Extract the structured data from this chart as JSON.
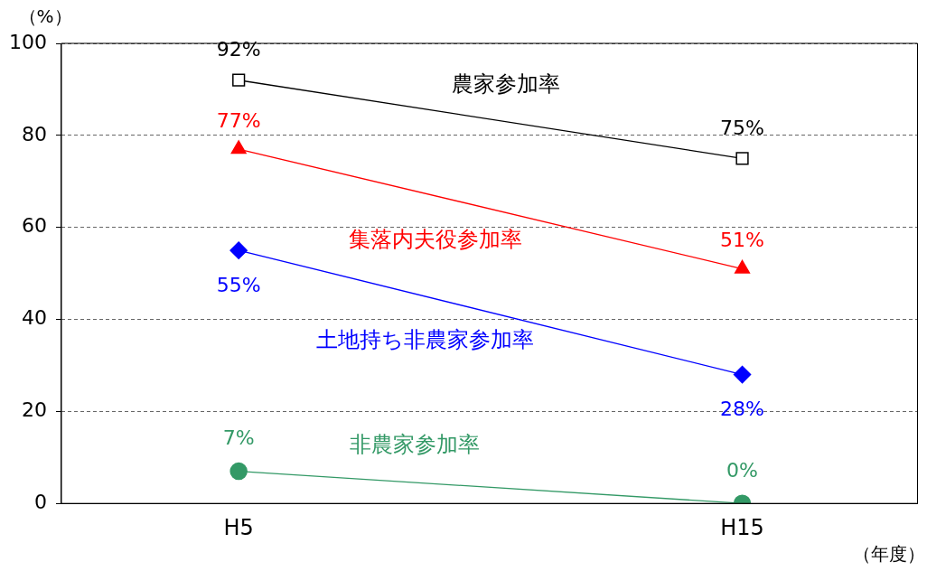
{
  "chart_data": {
    "type": "line",
    "ylabel": "（%）",
    "xlabel": "（年度）",
    "categories": [
      "H5",
      "H15"
    ],
    "ylim": [
      0,
      100
    ],
    "yticks": [
      0,
      20,
      40,
      60,
      80,
      100
    ],
    "grid": "y",
    "legend": false,
    "series": [
      {
        "name": "農家参加率",
        "color": "#000000",
        "marker": "square",
        "values": [
          92,
          75
        ],
        "value_labels": [
          "92%",
          "75%"
        ]
      },
      {
        "name": "集落内夫役参加率",
        "color": "#ff0000",
        "marker": "triangle",
        "values": [
          77,
          51
        ],
        "value_labels": [
          "77%",
          "51%"
        ]
      },
      {
        "name": "土地持ち非農家参加率",
        "color": "#0000ff",
        "marker": "diamond",
        "values": [
          55,
          28
        ],
        "value_labels": [
          "55%",
          "28%"
        ]
      },
      {
        "name": "非農家参加率",
        "color": "#339966",
        "marker": "circle",
        "values": [
          7,
          0
        ],
        "value_labels": [
          "7%",
          "0%"
        ]
      }
    ]
  }
}
